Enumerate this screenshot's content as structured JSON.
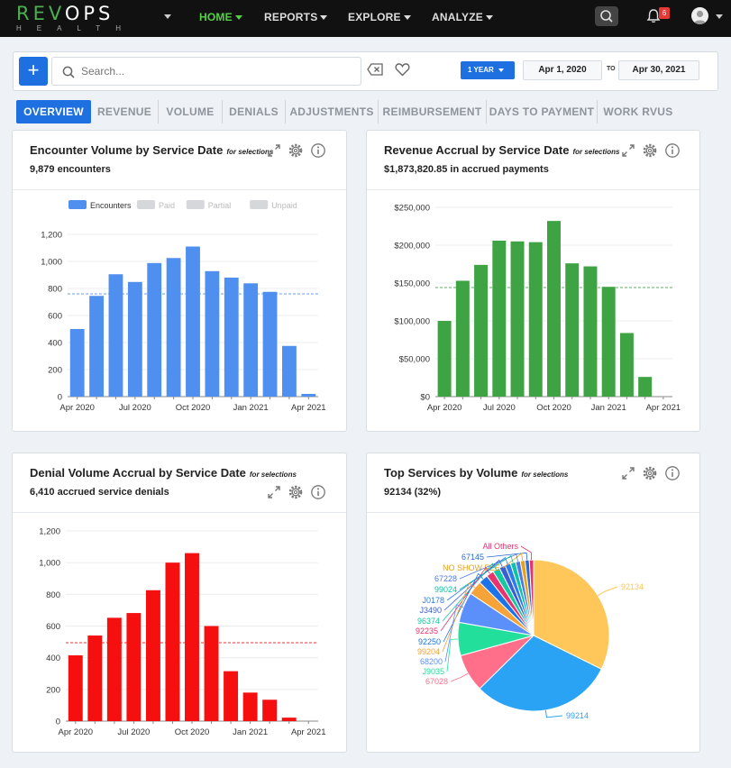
{
  "app": {
    "logo_top_a": "REV",
    "logo_top_b": "OPS",
    "logo_bottom": "HEALTH"
  },
  "nav": {
    "items": [
      {
        "label": "HOME",
        "active": true
      },
      {
        "label": "REPORTS",
        "active": false
      },
      {
        "label": "EXPLORE",
        "active": false
      },
      {
        "label": "ANALYZE",
        "active": false
      }
    ],
    "notification_count": "6",
    "accent": "#55d043"
  },
  "filters": {
    "add_label": "+",
    "search_placeholder": "Search...",
    "period_label": "1 YEAR",
    "date_from": "Apr 1, 2020",
    "date_to_label": "TO",
    "date_to": "Apr 30, 2021"
  },
  "tabs": [
    "OVERVIEW",
    "REVENUE",
    "VOLUME",
    "DENIALS",
    "ADJUSTMENTS",
    "REIMBURSEMENT",
    "DAYS TO PAYMENT",
    "WORK RVUS"
  ],
  "cards": {
    "encounters": {
      "title": "Encounter Volume by Service Date",
      "selections": "for selections",
      "subtitle": "9,879 encounters"
    },
    "revenue": {
      "title": "Revenue Accrual by Service Date",
      "selections": "for selections",
      "subtitle": "$1,873,820.85 in accrued payments"
    },
    "denials": {
      "title": "Denial Volume Accrual by Service Date",
      "selections": "for selections",
      "subtitle": "6,410 accrued service denials"
    },
    "services": {
      "title": "Top Services by Volume",
      "selections": "for selections",
      "subtitle": "92134 (32%)"
    }
  },
  "chart_data": [
    {
      "type": "bar",
      "id": "encounters",
      "color": "#4f8ff0",
      "categories": [
        "Apr 2020",
        "May 2020",
        "Jun 2020",
        "Jul 2020",
        "Aug 2020",
        "Sep 2020",
        "Oct 2020",
        "Nov 2020",
        "Dec 2020",
        "Jan 2021",
        "Feb 2021",
        "Mar 2021",
        "Apr 2021"
      ],
      "x_tick_labels": [
        "Apr 2020",
        "Jul 2020",
        "Oct 2020",
        "Jan 2021",
        "Apr 2021"
      ],
      "values": [
        500,
        745,
        905,
        848,
        988,
        1025,
        1110,
        928,
        880,
        838,
        775,
        375,
        20
      ],
      "ylim": [
        0,
        1200
      ],
      "y_ticks": [
        0,
        200,
        400,
        600,
        800,
        1000,
        1200
      ],
      "y_tick_labels": [
        "0",
        "200",
        "400",
        "600",
        "800",
        "1,000",
        "1,200"
      ],
      "reference_line": 760,
      "legend": [
        {
          "label": "Encounters",
          "color": "#4f8ff0"
        },
        {
          "label": "Paid",
          "color": "#d5d7da"
        },
        {
          "label": "Partial",
          "color": "#d5d7da"
        },
        {
          "label": "Unpaid",
          "color": "#d5d7da"
        }
      ],
      "grid": true
    },
    {
      "type": "bar",
      "id": "revenue",
      "color": "#3da343",
      "categories": [
        "Apr 2020",
        "May 2020",
        "Jun 2020",
        "Jul 2020",
        "Aug 2020",
        "Sep 2020",
        "Oct 2020",
        "Nov 2020",
        "Dec 2020",
        "Jan 2021",
        "Feb 2021",
        "Mar 2021",
        "Apr 2021"
      ],
      "x_tick_labels": [
        "Apr 2020",
        "Jul 2020",
        "Oct 2020",
        "Jan 2021",
        "Apr 2021"
      ],
      "values": [
        100000,
        153000,
        174000,
        206000,
        205000,
        204000,
        232000,
        176000,
        172000,
        145000,
        84000,
        26000,
        0
      ],
      "ylim": [
        0,
        250000
      ],
      "y_ticks": [
        0,
        50000,
        100000,
        150000,
        200000,
        250000
      ],
      "y_tick_labels": [
        "$0",
        "$50,000",
        "$100,000",
        "$150,000",
        "$200,000",
        "$250,000"
      ],
      "reference_line": 144000,
      "grid": true
    },
    {
      "type": "bar",
      "id": "denials",
      "color": "#f50f0f",
      "categories": [
        "Apr 2020",
        "May 2020",
        "Jun 2020",
        "Jul 2020",
        "Aug 2020",
        "Sep 2020",
        "Oct 2020",
        "Nov 2020",
        "Dec 2020",
        "Jan 2021",
        "Feb 2021",
        "Mar 2021",
        "Apr 2021"
      ],
      "x_tick_labels": [
        "Apr 2020",
        "Jul 2020",
        "Oct 2020",
        "Jan 2021",
        "Apr 2021"
      ],
      "values": [
        415,
        540,
        652,
        682,
        826,
        1000,
        1060,
        600,
        315,
        180,
        135,
        22,
        0
      ],
      "ylim": [
        0,
        1200
      ],
      "y_ticks": [
        0,
        200,
        400,
        600,
        800,
        1000,
        1200
      ],
      "y_tick_labels": [
        "0",
        "200",
        "400",
        "600",
        "800",
        "1,000",
        "1,200"
      ],
      "reference_line": 495,
      "grid": true
    },
    {
      "type": "pie",
      "id": "services",
      "slices": [
        {
          "label": "92134",
          "value": 32.0,
          "color": "#ffc65a"
        },
        {
          "label": "99214",
          "value": 30.0,
          "color": "#2ba3f5"
        },
        {
          "label": "67028",
          "value": 8.0,
          "color": "#ff6f8a"
        },
        {
          "label": "J9035",
          "value": 7.0,
          "color": "#22e09b"
        },
        {
          "label": "68200",
          "value": 6.5,
          "color": "#5b8ff9"
        },
        {
          "label": "99204",
          "value": 3.0,
          "color": "#f6a33a"
        },
        {
          "label": "92250",
          "value": 2.0,
          "color": "#1a73e8"
        },
        {
          "label": "92235",
          "value": 1.6,
          "color": "#e8336d"
        },
        {
          "label": "96374",
          "value": 1.5,
          "color": "#14c9a0"
        },
        {
          "label": "J3490",
          "value": 1.3,
          "color": "#3b5dd6"
        },
        {
          "label": "J0178",
          "value": 1.2,
          "color": "#2b7de9"
        },
        {
          "label": "99024",
          "value": 1.1,
          "color": "#10c2a4"
        },
        {
          "label": "67228",
          "value": 1.0,
          "color": "#4a79e8"
        },
        {
          "label": "NO SHOW FEE",
          "value": 1.0,
          "color": "#e8a21a"
        },
        {
          "label": "67145",
          "value": 0.9,
          "color": "#2a6cd4"
        },
        {
          "label": "All Others",
          "value": 0.9,
          "color": "#e8336d"
        }
      ]
    }
  ]
}
